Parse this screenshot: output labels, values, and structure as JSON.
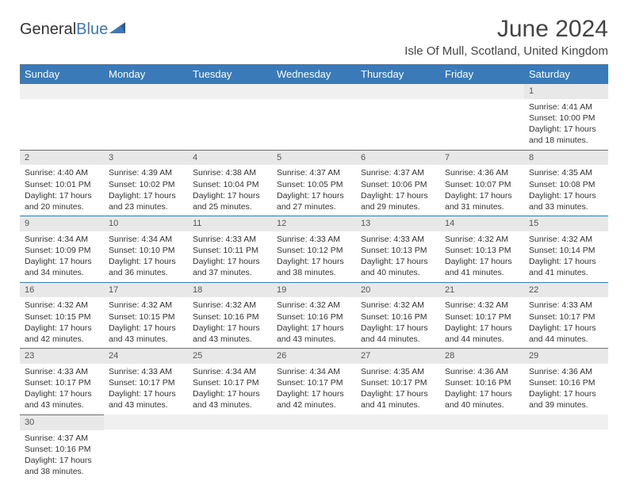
{
  "logo": {
    "word1": "General",
    "word2": "Blue"
  },
  "title": "June 2024",
  "location": "Isle Of Mull, Scotland, United Kingdom",
  "colors": {
    "header_bg": "#3a7ab8",
    "header_text": "#ffffff",
    "daynum_bg": "#e8e8e8",
    "row_border": "#3a7ab8",
    "text": "#333333",
    "background": "#ffffff"
  },
  "day_headers": [
    "Sunday",
    "Monday",
    "Tuesday",
    "Wednesday",
    "Thursday",
    "Friday",
    "Saturday"
  ],
  "weeks": [
    [
      {
        "n": "",
        "l1": "",
        "l2": "",
        "l3": "",
        "l4": "",
        "empty": true
      },
      {
        "n": "",
        "l1": "",
        "l2": "",
        "l3": "",
        "l4": "",
        "empty": true
      },
      {
        "n": "",
        "l1": "",
        "l2": "",
        "l3": "",
        "l4": "",
        "empty": true
      },
      {
        "n": "",
        "l1": "",
        "l2": "",
        "l3": "",
        "l4": "",
        "empty": true
      },
      {
        "n": "",
        "l1": "",
        "l2": "",
        "l3": "",
        "l4": "",
        "empty": true
      },
      {
        "n": "",
        "l1": "",
        "l2": "",
        "l3": "",
        "l4": "",
        "empty": true
      },
      {
        "n": "1",
        "l1": "Sunrise: 4:41 AM",
        "l2": "Sunset: 10:00 PM",
        "l3": "Daylight: 17 hours",
        "l4": "and 18 minutes."
      }
    ],
    [
      {
        "n": "2",
        "l1": "Sunrise: 4:40 AM",
        "l2": "Sunset: 10:01 PM",
        "l3": "Daylight: 17 hours",
        "l4": "and 20 minutes."
      },
      {
        "n": "3",
        "l1": "Sunrise: 4:39 AM",
        "l2": "Sunset: 10:02 PM",
        "l3": "Daylight: 17 hours",
        "l4": "and 23 minutes."
      },
      {
        "n": "4",
        "l1": "Sunrise: 4:38 AM",
        "l2": "Sunset: 10:04 PM",
        "l3": "Daylight: 17 hours",
        "l4": "and 25 minutes."
      },
      {
        "n": "5",
        "l1": "Sunrise: 4:37 AM",
        "l2": "Sunset: 10:05 PM",
        "l3": "Daylight: 17 hours",
        "l4": "and 27 minutes."
      },
      {
        "n": "6",
        "l1": "Sunrise: 4:37 AM",
        "l2": "Sunset: 10:06 PM",
        "l3": "Daylight: 17 hours",
        "l4": "and 29 minutes."
      },
      {
        "n": "7",
        "l1": "Sunrise: 4:36 AM",
        "l2": "Sunset: 10:07 PM",
        "l3": "Daylight: 17 hours",
        "l4": "and 31 minutes."
      },
      {
        "n": "8",
        "l1": "Sunrise: 4:35 AM",
        "l2": "Sunset: 10:08 PM",
        "l3": "Daylight: 17 hours",
        "l4": "and 33 minutes."
      }
    ],
    [
      {
        "n": "9",
        "l1": "Sunrise: 4:34 AM",
        "l2": "Sunset: 10:09 PM",
        "l3": "Daylight: 17 hours",
        "l4": "and 34 minutes."
      },
      {
        "n": "10",
        "l1": "Sunrise: 4:34 AM",
        "l2": "Sunset: 10:10 PM",
        "l3": "Daylight: 17 hours",
        "l4": "and 36 minutes."
      },
      {
        "n": "11",
        "l1": "Sunrise: 4:33 AM",
        "l2": "Sunset: 10:11 PM",
        "l3": "Daylight: 17 hours",
        "l4": "and 37 minutes."
      },
      {
        "n": "12",
        "l1": "Sunrise: 4:33 AM",
        "l2": "Sunset: 10:12 PM",
        "l3": "Daylight: 17 hours",
        "l4": "and 38 minutes."
      },
      {
        "n": "13",
        "l1": "Sunrise: 4:33 AM",
        "l2": "Sunset: 10:13 PM",
        "l3": "Daylight: 17 hours",
        "l4": "and 40 minutes."
      },
      {
        "n": "14",
        "l1": "Sunrise: 4:32 AM",
        "l2": "Sunset: 10:13 PM",
        "l3": "Daylight: 17 hours",
        "l4": "and 41 minutes."
      },
      {
        "n": "15",
        "l1": "Sunrise: 4:32 AM",
        "l2": "Sunset: 10:14 PM",
        "l3": "Daylight: 17 hours",
        "l4": "and 41 minutes."
      }
    ],
    [
      {
        "n": "16",
        "l1": "Sunrise: 4:32 AM",
        "l2": "Sunset: 10:15 PM",
        "l3": "Daylight: 17 hours",
        "l4": "and 42 minutes."
      },
      {
        "n": "17",
        "l1": "Sunrise: 4:32 AM",
        "l2": "Sunset: 10:15 PM",
        "l3": "Daylight: 17 hours",
        "l4": "and 43 minutes."
      },
      {
        "n": "18",
        "l1": "Sunrise: 4:32 AM",
        "l2": "Sunset: 10:16 PM",
        "l3": "Daylight: 17 hours",
        "l4": "and 43 minutes."
      },
      {
        "n": "19",
        "l1": "Sunrise: 4:32 AM",
        "l2": "Sunset: 10:16 PM",
        "l3": "Daylight: 17 hours",
        "l4": "and 43 minutes."
      },
      {
        "n": "20",
        "l1": "Sunrise: 4:32 AM",
        "l2": "Sunset: 10:16 PM",
        "l3": "Daylight: 17 hours",
        "l4": "and 44 minutes."
      },
      {
        "n": "21",
        "l1": "Sunrise: 4:32 AM",
        "l2": "Sunset: 10:17 PM",
        "l3": "Daylight: 17 hours",
        "l4": "and 44 minutes."
      },
      {
        "n": "22",
        "l1": "Sunrise: 4:33 AM",
        "l2": "Sunset: 10:17 PM",
        "l3": "Daylight: 17 hours",
        "l4": "and 44 minutes."
      }
    ],
    [
      {
        "n": "23",
        "l1": "Sunrise: 4:33 AM",
        "l2": "Sunset: 10:17 PM",
        "l3": "Daylight: 17 hours",
        "l4": "and 43 minutes."
      },
      {
        "n": "24",
        "l1": "Sunrise: 4:33 AM",
        "l2": "Sunset: 10:17 PM",
        "l3": "Daylight: 17 hours",
        "l4": "and 43 minutes."
      },
      {
        "n": "25",
        "l1": "Sunrise: 4:34 AM",
        "l2": "Sunset: 10:17 PM",
        "l3": "Daylight: 17 hours",
        "l4": "and 43 minutes."
      },
      {
        "n": "26",
        "l1": "Sunrise: 4:34 AM",
        "l2": "Sunset: 10:17 PM",
        "l3": "Daylight: 17 hours",
        "l4": "and 42 minutes."
      },
      {
        "n": "27",
        "l1": "Sunrise: 4:35 AM",
        "l2": "Sunset: 10:17 PM",
        "l3": "Daylight: 17 hours",
        "l4": "and 41 minutes."
      },
      {
        "n": "28",
        "l1": "Sunrise: 4:36 AM",
        "l2": "Sunset: 10:16 PM",
        "l3": "Daylight: 17 hours",
        "l4": "and 40 minutes."
      },
      {
        "n": "29",
        "l1": "Sunrise: 4:36 AM",
        "l2": "Sunset: 10:16 PM",
        "l3": "Daylight: 17 hours",
        "l4": "and 39 minutes."
      }
    ],
    [
      {
        "n": "30",
        "l1": "Sunrise: 4:37 AM",
        "l2": "Sunset: 10:16 PM",
        "l3": "Daylight: 17 hours",
        "l4": "and 38 minutes."
      },
      {
        "n": "",
        "l1": "",
        "l2": "",
        "l3": "",
        "l4": "",
        "empty": true,
        "noborder": true
      },
      {
        "n": "",
        "l1": "",
        "l2": "",
        "l3": "",
        "l4": "",
        "empty": true,
        "noborder": true
      },
      {
        "n": "",
        "l1": "",
        "l2": "",
        "l3": "",
        "l4": "",
        "empty": true,
        "noborder": true
      },
      {
        "n": "",
        "l1": "",
        "l2": "",
        "l3": "",
        "l4": "",
        "empty": true,
        "noborder": true
      },
      {
        "n": "",
        "l1": "",
        "l2": "",
        "l3": "",
        "l4": "",
        "empty": true,
        "noborder": true
      },
      {
        "n": "",
        "l1": "",
        "l2": "",
        "l3": "",
        "l4": "",
        "empty": true,
        "noborder": true
      }
    ]
  ]
}
